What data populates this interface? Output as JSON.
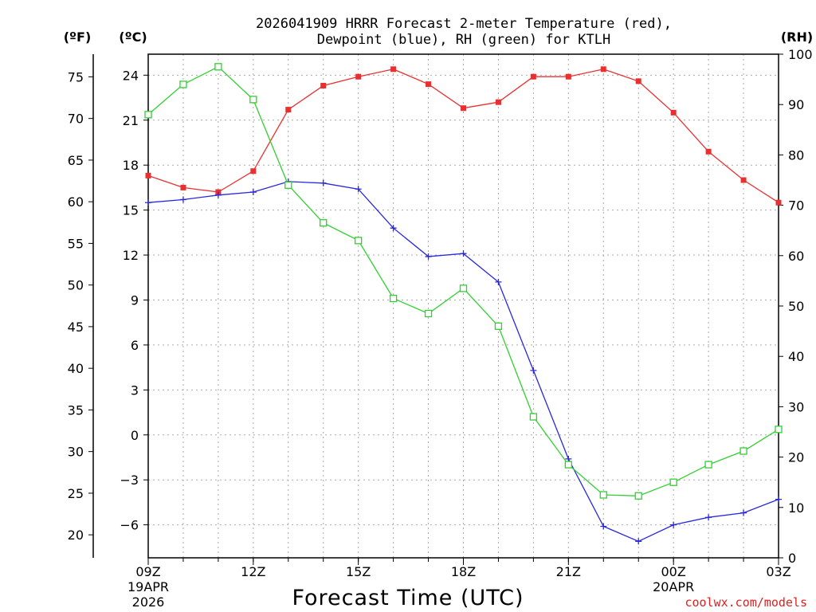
{
  "chart_data": {
    "type": "line",
    "title_line1": "2026041909 HRRR Forecast 2-meter Temperature (red),",
    "title_line2": "Dewpoint (blue), RH (green) for KTLH",
    "xlabel": "Forecast Time (UTC)",
    "credit": "coolwx.com/models",
    "left_f_axis_label": "(ºF)",
    "left_c_axis_label": "(ºC)",
    "right_axis_label": "(RH)",
    "x_hours": [
      0,
      1,
      2,
      3,
      4,
      5,
      6,
      7,
      8,
      9,
      10,
      11,
      12,
      13,
      14,
      15,
      16,
      17,
      18
    ],
    "x_ticks": [
      {
        "hour": 0,
        "label": "09Z",
        "sub1": "19APR",
        "sub2": "2026"
      },
      {
        "hour": 3,
        "label": "12Z"
      },
      {
        "hour": 6,
        "label": "15Z"
      },
      {
        "hour": 9,
        "label": "18Z"
      },
      {
        "hour": 12,
        "label": "21Z"
      },
      {
        "hour": 15,
        "label": "00Z",
        "sub1": "20APR"
      },
      {
        "hour": 18,
        "label": "03Z"
      }
    ],
    "y_c_range": [
      -8.2,
      25.4
    ],
    "y_c_ticks": [
      24,
      21,
      18,
      15,
      12,
      9,
      6,
      3,
      0,
      -3,
      -6
    ],
    "y_c_tick_labels": [
      "24",
      "21",
      "18",
      "15",
      "12",
      "9",
      "6",
      "3",
      "0",
      "−3",
      "−6"
    ],
    "y_f_ticks": [
      75,
      70,
      65,
      60,
      55,
      50,
      45,
      40,
      35,
      30,
      25,
      20
    ],
    "y_f_tick_labels": [
      "75",
      "70",
      "65",
      "60",
      "55",
      "50",
      "45",
      "40",
      "35",
      "30",
      "25",
      "20"
    ],
    "y_rh_range": [
      0,
      100
    ],
    "y_rh_ticks": [
      100,
      90,
      80,
      70,
      60,
      50,
      40,
      30,
      20,
      10,
      0
    ],
    "y_rh_tick_labels": [
      "100",
      "90",
      "80",
      "70",
      "60",
      "50",
      "40",
      "30",
      "20",
      "10",
      "0"
    ],
    "series": [
      {
        "name": "Temperature",
        "axis": "C",
        "color": "#e83030",
        "marker": "filled-square",
        "values": [
          17.3,
          16.5,
          16.2,
          17.6,
          21.7,
          23.3,
          23.9,
          24.4,
          23.4,
          21.8,
          22.2,
          23.9,
          23.9,
          24.4,
          23.6,
          21.5,
          18.9,
          17.0,
          15.5
        ]
      },
      {
        "name": "Dewpoint",
        "axis": "C",
        "color": "#2828e0",
        "marker": "plus",
        "values": [
          15.5,
          15.7,
          16.0,
          16.2,
          16.9,
          16.8,
          16.4,
          13.8,
          11.9,
          12.1,
          10.2,
          4.3,
          -1.6,
          -6.1,
          -7.1,
          -6.0,
          -5.5,
          -5.2,
          -4.3
        ]
      },
      {
        "name": "RH",
        "axis": "RH",
        "color": "#30d030",
        "marker": "open-square",
        "values": [
          88,
          94,
          97.5,
          91,
          74,
          66.5,
          63,
          51.5,
          48.5,
          53.5,
          46,
          28,
          18.5,
          12.5,
          12.3,
          15,
          18.5,
          21.2,
          25.5
        ]
      }
    ],
    "grid": true,
    "legend": "none"
  }
}
